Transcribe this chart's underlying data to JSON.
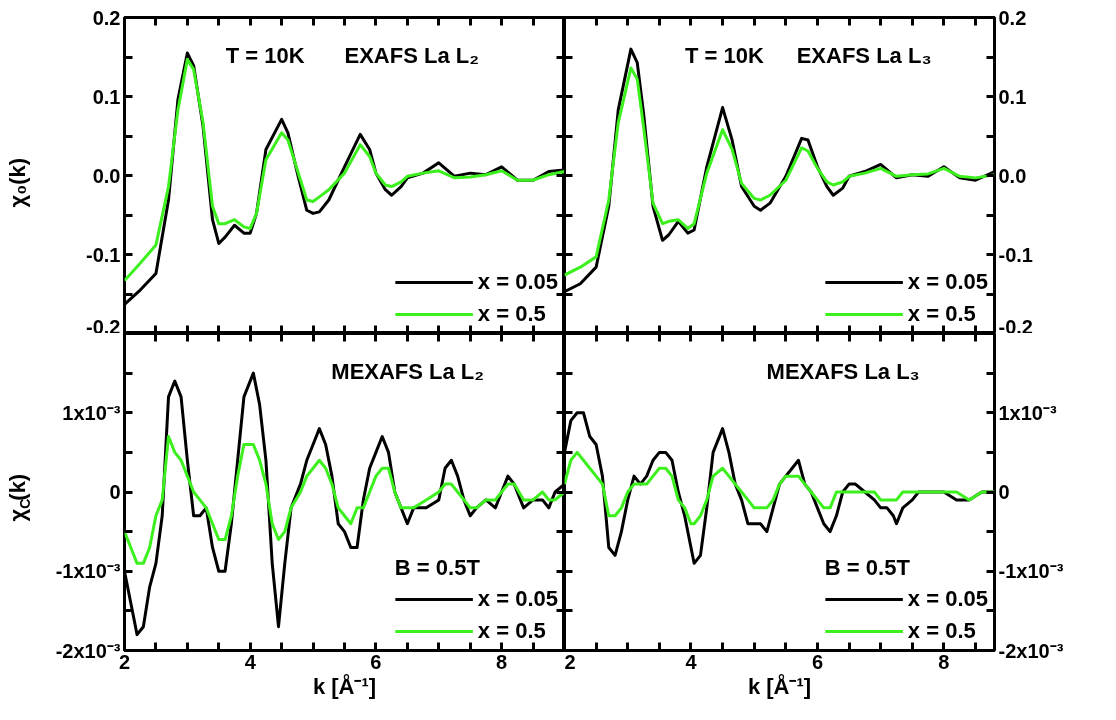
{
  "chart_data": [
    {
      "type": "line",
      "ylabel": "χ₀(k)",
      "annotations": [
        "T = 10K",
        "EXAFS La L₂"
      ],
      "legend": "bottom right",
      "tick_labels": "y",
      "xlim": [
        2,
        9
      ],
      "ylim": [
        -0.2,
        0.2
      ],
      "xticks": [
        2,
        {
          "value": 2.5,
          "label": null
        },
        {
          "value": 3,
          "label": null
        },
        {
          "value": 3.5,
          "label": null
        },
        4,
        {
          "value": 4.5,
          "label": null
        },
        {
          "value": 5,
          "label": null
        },
        {
          "value": 5.5,
          "label": null
        },
        6,
        {
          "value": 6.5,
          "label": null
        },
        {
          "value": 7,
          "label": null
        },
        {
          "value": 7.5,
          "label": null
        },
        8,
        {
          "value": 8.5,
          "label": null
        }
      ],
      "yticks": [
        -0.2,
        {
          "value": -0.15,
          "label": null
        },
        -0.1,
        {
          "value": -0.05,
          "label": null
        },
        {
          "value": 0,
          "label": "0.0"
        },
        {
          "value": 0.05,
          "label": null
        },
        0.1,
        {
          "value": 0.15,
          "label": null
        },
        0.2
      ],
      "x": [
        2,
        2.25,
        2.5,
        2.7,
        2.85,
        3.0,
        3.1,
        3.25,
        3.4,
        3.5,
        3.6,
        3.75,
        3.9,
        4.0,
        4.1,
        4.25,
        4.5,
        4.6,
        4.75,
        4.9,
        5.0,
        5.1,
        5.25,
        5.5,
        5.75,
        5.9,
        6.0,
        6.15,
        6.25,
        6.4,
        6.5,
        6.75,
        7.0,
        7.25,
        7.5,
        7.75,
        8.0,
        8.25,
        8.5,
        8.75,
        9.0
      ],
      "series": [
        {
          "name": "x = 0.05",
          "color": "#000000",
          "values": [
            -0.163,
            -0.145,
            -0.124,
            -0.031,
            0.096,
            0.155,
            0.139,
            0.062,
            -0.056,
            -0.086,
            -0.078,
            -0.063,
            -0.073,
            -0.073,
            -0.048,
            0.033,
            0.071,
            0.054,
            0.003,
            -0.044,
            -0.048,
            -0.046,
            -0.031,
            0.011,
            0.052,
            0.033,
            0.003,
            -0.018,
            -0.025,
            -0.014,
            -0.003,
            0.003,
            0.016,
            -0.001,
            0.003,
            0.001,
            0.011,
            -0.006,
            -0.006,
            0.005,
            0.007
          ]
        },
        {
          "name": "x = 0.5",
          "color": "#3cf01e",
          "values": [
            -0.133,
            -0.111,
            -0.088,
            -0.014,
            0.083,
            0.147,
            0.134,
            0.067,
            -0.039,
            -0.061,
            -0.061,
            -0.056,
            -0.065,
            -0.067,
            -0.048,
            0.02,
            0.054,
            0.045,
            0.007,
            -0.031,
            -0.033,
            -0.027,
            -0.018,
            0.003,
            0.039,
            0.024,
            0.003,
            -0.012,
            -0.014,
            -0.008,
            -0.001,
            0.003,
            0.006,
            -0.003,
            -0.002,
            0.001,
            0.006,
            -0.006,
            -0.006,
            0.001,
            0.005
          ]
        }
      ]
    },
    {
      "type": "line",
      "annotations": [
        "T = 10K",
        "EXAFS La L₃"
      ],
      "legend": "bottom right",
      "tick_labels": "y",
      "xlim": [
        2,
        8.8
      ],
      "ylim": [
        -0.2,
        0.2
      ],
      "xticks": [
        2,
        {
          "value": 2.5,
          "label": null
        },
        {
          "value": 3,
          "label": null
        },
        {
          "value": 3.5,
          "label": null
        },
        4,
        {
          "value": 4.5,
          "label": null
        },
        {
          "value": 5,
          "label": null
        },
        {
          "value": 5.5,
          "label": null
        },
        6,
        {
          "value": 6.5,
          "label": null
        },
        {
          "value": 7,
          "label": null
        },
        {
          "value": 7.5,
          "label": null
        },
        8,
        {
          "value": 8.5,
          "label": null
        }
      ],
      "yticks": [
        -0.2,
        {
          "value": -0.15,
          "label": null
        },
        -0.1,
        {
          "value": -0.05,
          "label": null
        },
        {
          "value": 0,
          "label": "0.0"
        },
        {
          "value": 0.05,
          "label": null
        },
        0.1,
        {
          "value": 0.15,
          "label": null
        },
        0.2
      ],
      "x": [
        2,
        2.25,
        2.5,
        2.7,
        2.85,
        3.05,
        3.15,
        3.25,
        3.4,
        3.55,
        3.65,
        3.8,
        3.95,
        4.05,
        4.25,
        4.5,
        4.65,
        4.8,
        5.0,
        5.1,
        5.25,
        5.5,
        5.75,
        5.85,
        6.0,
        6.15,
        6.25,
        6.4,
        6.5,
        6.75,
        7.0,
        7.25,
        7.5,
        7.75,
        8.0,
        8.25,
        8.5,
        8.8
      ],
      "series": [
        {
          "name": "x = 0.05",
          "color": "#000000",
          "values": [
            -0.147,
            -0.137,
            -0.116,
            -0.039,
            0.083,
            0.16,
            0.143,
            0.079,
            -0.039,
            -0.082,
            -0.075,
            -0.058,
            -0.073,
            -0.069,
            0.011,
            0.086,
            0.045,
            -0.014,
            -0.039,
            -0.044,
            -0.035,
            -0.001,
            0.047,
            0.045,
            0.011,
            -0.014,
            -0.025,
            -0.016,
            -0.001,
            0.005,
            0.014,
            -0.003,
            0.001,
            -0.001,
            0.011,
            -0.003,
            -0.006,
            0.005
          ]
        },
        {
          "name": "x = 0.5",
          "color": "#3cf01e",
          "values": [
            -0.126,
            -0.116,
            -0.103,
            -0.031,
            0.067,
            0.136,
            0.122,
            0.062,
            -0.035,
            -0.061,
            -0.058,
            -0.056,
            -0.067,
            -0.061,
            0.003,
            0.058,
            0.033,
            -0.01,
            -0.029,
            -0.031,
            -0.025,
            -0.006,
            0.035,
            0.031,
            0.009,
            -0.008,
            -0.012,
            -0.008,
            -0.001,
            0.003,
            0.009,
            -0.001,
            0.001,
            0.002,
            0.009,
            -0.001,
            -0.003,
            0.001
          ]
        }
      ]
    },
    {
      "type": "line",
      "xlabel": "k [Å⁻¹]",
      "ylabel": "χ$_{C}$(k)",
      "annotations": [
        "MEXAFS La L₂"
      ],
      "legend": "bottom right",
      "legend_title": "B = 0.5T",
      "xlim": [
        2,
        9
      ],
      "ylim": [
        -0.002,
        0.002
      ],
      "xticks": [
        2,
        {
          "value": 2.5,
          "label": null
        },
        {
          "value": 3,
          "label": null
        },
        {
          "value": 3.5,
          "label": null
        },
        4,
        {
          "value": 4.5,
          "label": null
        },
        {
          "value": 5,
          "label": null
        },
        {
          "value": 5.5,
          "label": null
        },
        6,
        {
          "value": 6.5,
          "label": null
        },
        {
          "value": 7,
          "label": null
        },
        {
          "value": 7.5,
          "label": null
        },
        8,
        {
          "value": 8.5,
          "label": null
        }
      ],
      "yticks": [
        {
          "value": -0.002,
          "label": "-2x10⁻³"
        },
        {
          "value": -0.0015,
          "label": null
        },
        {
          "value": -0.001,
          "label": "-1x10⁻³"
        },
        {
          "value": -0.0005,
          "label": null
        },
        0,
        {
          "value": 0.0005,
          "label": null
        },
        {
          "value": 0.001,
          "label": "1x10⁻³"
        },
        {
          "value": 0.0015,
          "label": null
        }
      ],
      "x": [
        2.0,
        2.1,
        2.2,
        2.3,
        2.4,
        2.5,
        2.6,
        2.7,
        2.8,
        2.9,
        3.0,
        3.1,
        3.2,
        3.3,
        3.4,
        3.5,
        3.6,
        3.7,
        3.8,
        3.9,
        4.05,
        4.15,
        4.25,
        4.35,
        4.45,
        4.55,
        4.65,
        4.8,
        4.9,
        5.0,
        5.1,
        5.2,
        5.3,
        5.4,
        5.5,
        5.6,
        5.7,
        5.8,
        5.9,
        6.0,
        6.1,
        6.2,
        6.3,
        6.4,
        6.5,
        6.6,
        6.8,
        7.0,
        7.1,
        7.2,
        7.3,
        7.4,
        7.5,
        7.6,
        7.75,
        7.9,
        8.0,
        8.1,
        8.2,
        8.35,
        8.5,
        8.65,
        8.75,
        8.85,
        9.0
      ],
      "series": [
        {
          "name": "x = 0.05",
          "color": "#000000",
          "values": [
            -0.001,
            -0.0014,
            -0.0018,
            -0.0017,
            -0.0012,
            -0.0009,
            -0.0003,
            0.0012,
            0.0014,
            0.0012,
            0.0004,
            -0.0003,
            -0.0003,
            -0.0002,
            -0.0007,
            -0.001,
            -0.001,
            -0.0004,
            0.0004,
            0.0012,
            0.0015,
            0.0011,
            0.0004,
            -0.0009,
            -0.0017,
            -0.0009,
            -0.0002,
            0.0001,
            0.0004,
            0.0006,
            0.0008,
            0.0006,
            0.0002,
            -0.0004,
            -0.0005,
            -0.0007,
            -0.0007,
            -0.0001,
            0.0003,
            0.0005,
            0.0007,
            0.0005,
            0,
            -0.0002,
            -0.0004,
            -0.0002,
            -0.0002,
            -0.0001,
            0.0003,
            0.0004,
            0.0002,
            -0.0001,
            -0.0003,
            -0.0002,
            -0.0001,
            -0.0002,
            0,
            0.0002,
            0.0001,
            -0.0002,
            -0.0001,
            -0.0001,
            -0.0002,
            0,
            0.0001
          ]
        },
        {
          "name": "x = 0.5",
          "color": "#3cf01e",
          "values": [
            -0.0005,
            -0.0007,
            -0.0009,
            -0.0009,
            -0.0007,
            -0.0003,
            -0.0001,
            0.0007,
            0.0005,
            0.0004,
            0.0002,
            0,
            -0.0001,
            -0.0002,
            -0.0004,
            -0.0006,
            -0.0006,
            -0.0003,
            0.0002,
            0.0006,
            0.0006,
            0.0004,
            0.0001,
            -0.0004,
            -0.0006,
            -0.0005,
            -0.0002,
            0,
            0.0002,
            0.0003,
            0.0004,
            0.0003,
            0.0001,
            -0.0002,
            -0.0003,
            -0.0004,
            -0.0002,
            -0.0002,
            0,
            0.0002,
            0.0003,
            0.0003,
            0,
            -0.0002,
            -0.0002,
            -0.0002,
            -0.0001,
            0,
            0.0001,
            0.0001,
            0,
            -0.0001,
            -0.0002,
            -0.0002,
            -0.0001,
            -0.0001,
            0,
            0.0001,
            0.0001,
            -0.0001,
            -0.0001,
            0,
            -0.0001,
            -0.0001,
            0
          ]
        }
      ]
    },
    {
      "type": "line",
      "xlabel": "k [Å⁻¹]",
      "annotations": [
        "MEXAFS La L₃"
      ],
      "legend": "bottom right",
      "legend_title": "B = 0.5T",
      "xlim": [
        2,
        8.8
      ],
      "ylim": [
        -0.002,
        0.002
      ],
      "xticks": [
        2,
        {
          "value": 2.5,
          "label": null
        },
        {
          "value": 3,
          "label": null
        },
        {
          "value": 3.5,
          "label": null
        },
        4,
        {
          "value": 4.5,
          "label": null
        },
        {
          "value": 5,
          "label": null
        },
        {
          "value": 5.5,
          "label": null
        },
        6,
        {
          "value": 6.5,
          "label": null
        },
        {
          "value": 7,
          "label": null
        },
        {
          "value": 7.5,
          "label": null
        },
        8,
        {
          "value": 8.5,
          "label": null
        }
      ],
      "yticks": [
        {
          "value": -0.002,
          "label": "-2x10⁻³"
        },
        {
          "value": -0.0015,
          "label": null
        },
        {
          "value": -0.001,
          "label": "-1x10⁻³"
        },
        {
          "value": -0.0005,
          "label": null
        },
        0,
        {
          "value": 0.0005,
          "label": null
        },
        {
          "value": 0.001,
          "label": "1x10⁻³"
        },
        {
          "value": 0.0015,
          "label": null
        }
      ],
      "x": [
        2.0,
        2.1,
        2.2,
        2.3,
        2.4,
        2.5,
        2.6,
        2.7,
        2.8,
        2.9,
        3.0,
        3.1,
        3.2,
        3.3,
        3.4,
        3.5,
        3.6,
        3.7,
        3.8,
        3.9,
        4.0,
        4.05,
        4.15,
        4.25,
        4.35,
        4.5,
        4.6,
        4.7,
        4.8,
        4.9,
        5.0,
        5.1,
        5.2,
        5.3,
        5.4,
        5.5,
        5.6,
        5.7,
        5.8,
        5.9,
        6.0,
        6.1,
        6.2,
        6.3,
        6.4,
        6.5,
        6.6,
        6.75,
        6.9,
        7.0,
        7.1,
        7.2,
        7.25,
        7.35,
        7.5,
        7.6,
        7.75,
        7.9,
        8.0,
        8.2,
        8.4,
        8.6,
        8.8
      ],
      "series": [
        {
          "name": "x = 0.05",
          "color": "#000000",
          "values": [
            0.0005,
            0.0009,
            0.001,
            0.001,
            0.0007,
            0.0006,
            0.0002,
            -0.0007,
            -0.0008,
            -0.0005,
            -0.0001,
            0.0002,
            0.0001,
            0.0002,
            0.0004,
            0.0005,
            0.0005,
            0.0004,
            0,
            -0.0003,
            -0.0007,
            -0.0009,
            -0.0008,
            -0.0002,
            0.0005,
            0.0008,
            0.0005,
            0.0001,
            -0.0001,
            -0.0004,
            -0.0004,
            -0.0004,
            -0.0005,
            -0.0002,
            0.0001,
            0.0002,
            0.0003,
            0.0004,
            0.0001,
            0,
            -0.0002,
            -0.0004,
            -0.0005,
            -0.0003,
            0,
            0.0001,
            0.0001,
            0,
            -0.0001,
            -0.0002,
            -0.0002,
            -0.0003,
            -0.0004,
            -0.0002,
            -0.0001,
            0,
            0,
            0,
            0,
            -0.0001,
            -0.0001,
            0,
            0
          ]
        },
        {
          "name": "x = 0.5",
          "color": "#3cf01e",
          "values": [
            0.0001,
            0.0004,
            0.0005,
            0.0004,
            0.0003,
            0.0002,
            0.0001,
            -0.0003,
            -0.0003,
            -0.0002,
            0,
            0.0001,
            0.0001,
            0.0001,
            0.0002,
            0.0003,
            0.0003,
            0.0002,
            -0.0001,
            -0.0002,
            -0.0004,
            -0.0004,
            -0.0003,
            -0.0001,
            0.0002,
            0.0003,
            0.0002,
            0.0001,
            0,
            -0.0001,
            -0.0002,
            -0.0002,
            -0.0002,
            -0.0001,
            0.0001,
            0.0002,
            0.0002,
            0.0002,
            0.0001,
            0,
            -0.0001,
            -0.0002,
            -0.0002,
            0,
            0,
            0,
            0,
            0,
            0,
            -0.0001,
            -0.0001,
            -0.0001,
            -0.0001,
            0,
            0,
            0,
            0,
            0,
            0,
            0,
            -0.0001,
            0,
            0
          ]
        }
      ]
    }
  ]
}
